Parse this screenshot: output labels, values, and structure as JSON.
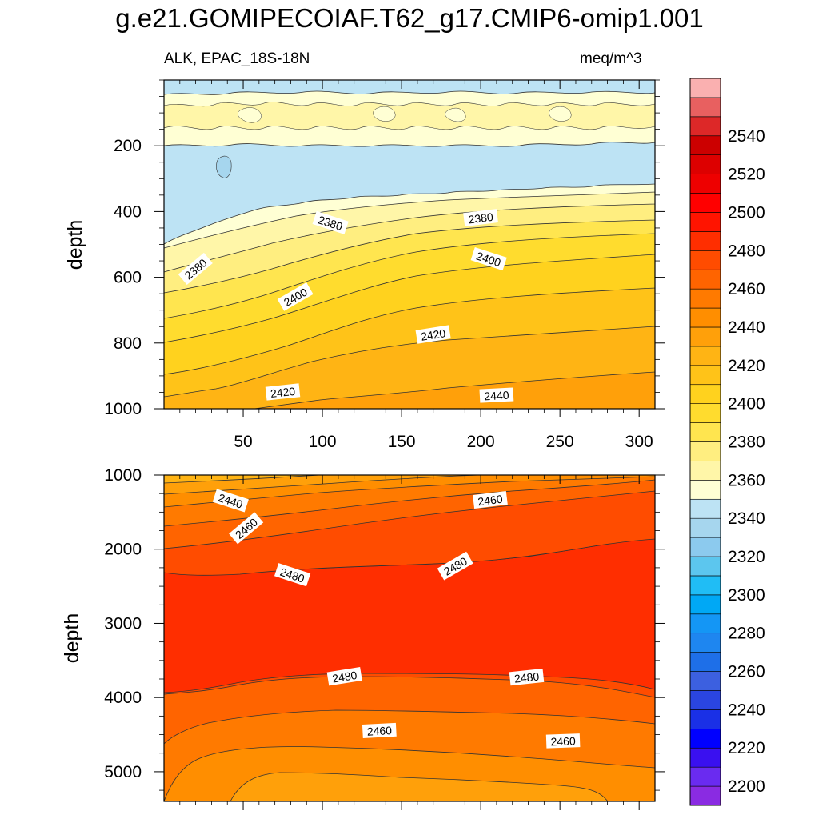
{
  "figure": {
    "title": "g.e21.GOMIPECOIAF.T62_g17.CMIP6-omip1.001",
    "subtitle_left": "ALK, EPAC_18S-18N",
    "subtitle_right": "meq/m^3"
  },
  "chart_data": [
    {
      "type": "heatmap",
      "name": "upper-ocean panel",
      "ylabel": "depth",
      "xlabel": "",
      "xlim": [
        0,
        310
      ],
      "ylim": [
        1000,
        0
      ],
      "x_ticks": [
        50,
        100,
        150,
        200,
        250,
        300
      ],
      "x_tick_labels": [
        "50",
        "100",
        "150",
        "200",
        "250",
        "300"
      ],
      "y_ticks": [
        200,
        400,
        600,
        800,
        1000
      ],
      "y_tick_labels": [
        "200",
        "400",
        "600",
        "800",
        "1000"
      ],
      "contour_labels": [
        {
          "text": "2380",
          "x": 105,
          "y": 435
        },
        {
          "text": "2380",
          "x": 200,
          "y": 420
        },
        {
          "text": "2380",
          "x": 20,
          "y": 575
        },
        {
          "text": "2400",
          "x": 205,
          "y": 545
        },
        {
          "text": "2400",
          "x": 83,
          "y": 660
        },
        {
          "text": "2420",
          "x": 170,
          "y": 775
        },
        {
          "text": "2420",
          "x": 75,
          "y": 950
        },
        {
          "text": "2440",
          "x": 210,
          "y": 960
        }
      ]
    },
    {
      "type": "heatmap",
      "name": "deep-ocean panel",
      "ylabel": "depth",
      "xlabel": "",
      "xlim": [
        0,
        310
      ],
      "ylim": [
        5400,
        1000
      ],
      "x_ticks": [
        50,
        100,
        150,
        200,
        250,
        300
      ],
      "y_ticks": [
        1000,
        2000,
        3000,
        4000,
        5000
      ],
      "y_tick_labels": [
        "1000",
        "2000",
        "3000",
        "4000",
        "5000"
      ],
      "contour_labels": [
        {
          "text": "2440",
          "x": 42,
          "y": 1350
        },
        {
          "text": "2460",
          "x": 206,
          "y": 1340
        },
        {
          "text": "2460",
          "x": 52,
          "y": 1720
        },
        {
          "text": "2480",
          "x": 81,
          "y": 2350
        },
        {
          "text": "2480",
          "x": 184,
          "y": 2230
        },
        {
          "text": "2480",
          "x": 114,
          "y": 3720
        },
        {
          "text": "2480",
          "x": 229,
          "y": 3730
        },
        {
          "text": "2460",
          "x": 136,
          "y": 4450
        },
        {
          "text": "2460",
          "x": 252,
          "y": 4590
        }
      ]
    }
  ],
  "colorbar": {
    "tick_labels": [
      "2200",
      "2220",
      "2240",
      "2260",
      "2280",
      "2300",
      "2320",
      "2340",
      "2360",
      "2380",
      "2400",
      "2420",
      "2440",
      "2460",
      "2480",
      "2500",
      "2520",
      "2540"
    ],
    "colors": [
      "#8A2BE2",
      "#6A2BF0",
      "#3A10F0",
      "#0000FF",
      "#1A30E6",
      "#2A45E0",
      "#3C60E0",
      "#1E6FE8",
      "#1E86F0",
      "#1496F5",
      "#00A8F5",
      "#20BDF5",
      "#5CC6EE",
      "#8CCAEE",
      "#A6D6EE",
      "#BDE3F4",
      "#FFFFD4",
      "#FFF6A8",
      "#FFEE80",
      "#FFE54F",
      "#FFDC2E",
      "#FFD21E",
      "#FFC318",
      "#FFB414",
      "#FFA00A",
      "#FF8E00",
      "#FF7A00",
      "#FF6400",
      "#FF4C00",
      "#FF2E00",
      "#FF1400",
      "#FF0000",
      "#EE0000",
      "#DD0000",
      "#CC0000",
      "#DD2828",
      "#E86060",
      "#FAB0B0"
    ]
  }
}
